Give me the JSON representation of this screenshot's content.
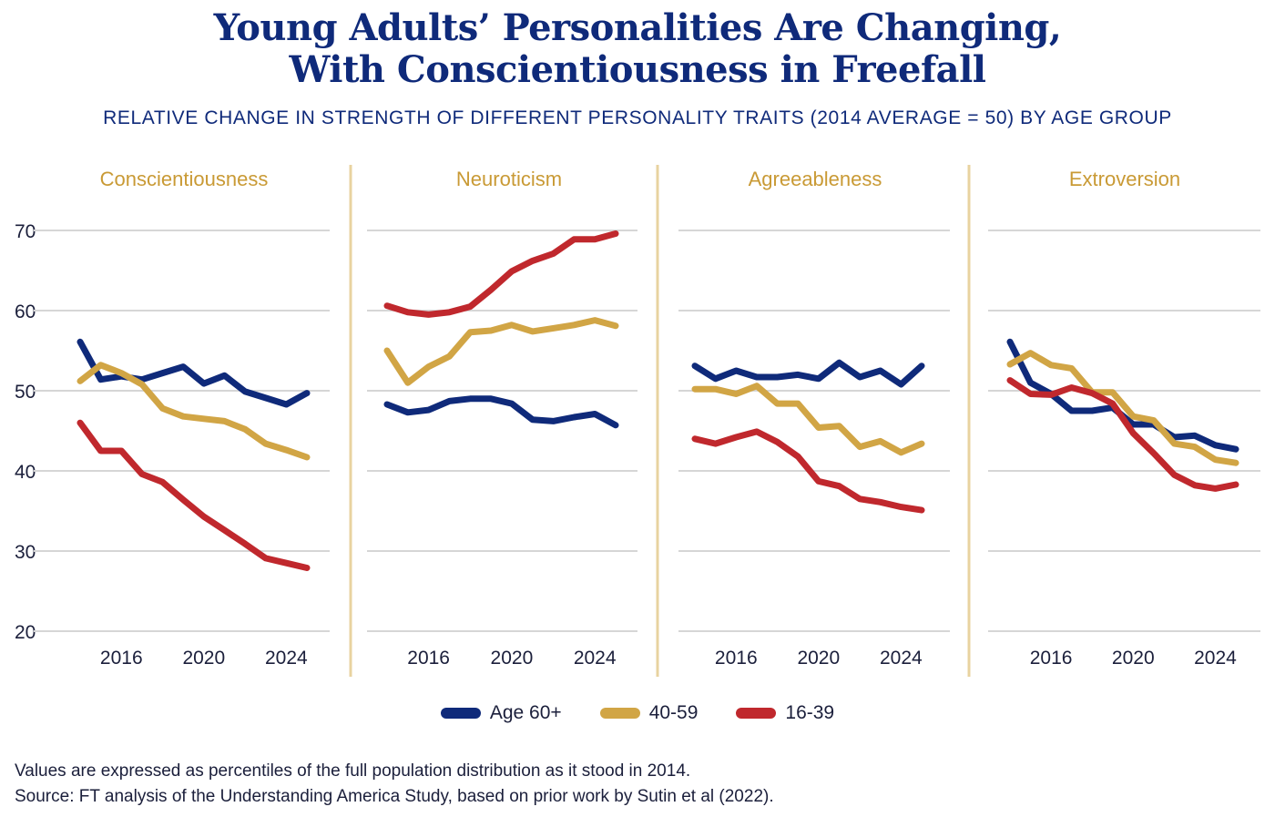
{
  "title_line1": "Young Adults’ Personalities Are Changing,",
  "title_line2": "With Conscientiousness in Freefall",
  "subtitle": "RELATIVE CHANGE IN STRENGTH OF DIFFERENT PERSONALITY TRAITS (2014 AVERAGE = 50) BY AGE GROUP",
  "footer_note": "Values are expressed as percentiles of the full population distribution as it stood in 2014.",
  "footer_source": "Source: FT analysis of the Understanding America Study, based on prior work by Sutin et al (2022).",
  "colors": {
    "age60": "#0f2a7a",
    "age40": "#d1a545",
    "age16": "#c0282d",
    "panel_title": "#c99a35",
    "divider": "#e8d3a0",
    "grid": "#d6d6d6",
    "text": "#1b1f3b"
  },
  "chart_data": {
    "type": "line",
    "title": "Young Adults’ Personalities Are Changing, With Conscientiousness in Freefall",
    "subtitle": "RELATIVE CHANGE IN STRENGTH OF DIFFERENT PERSONALITY TRAITS (2014 AVERAGE = 50) BY AGE GROUP",
    "x": [
      2014,
      2015,
      2016,
      2017,
      2018,
      2019,
      2020,
      2021,
      2022,
      2023,
      2024,
      2025
    ],
    "x_ticks": [
      2016,
      2020,
      2024
    ],
    "x_tick_labels": [
      "2016",
      "2020",
      "2024"
    ],
    "ylim": [
      20,
      70
    ],
    "y_ticks": [
      20,
      30,
      40,
      50,
      60,
      70
    ],
    "y_tick_labels": [
      "20",
      "30",
      "40",
      "50",
      "60",
      "70"
    ],
    "grid": true,
    "legend_position": "bottom-center",
    "legend": [
      "Age 60+",
      "40-59",
      "16-39"
    ],
    "panels": [
      {
        "title": "Conscientiousness",
        "series": [
          {
            "name": "Age 60+",
            "key": "age60",
            "values": [
              56.1,
              51.4,
              51.8,
              51.4,
              52.2,
              53.0,
              50.9,
              51.9,
              49.9,
              49.1,
              48.3,
              49.7
            ]
          },
          {
            "name": "40-59",
            "key": "age40",
            "values": [
              51.2,
              53.2,
              52.2,
              50.8,
              47.8,
              46.8,
              46.5,
              46.2,
              45.2,
              43.4,
              42.6,
              41.7
            ]
          },
          {
            "name": "16-39",
            "key": "age16",
            "values": [
              46.0,
              42.5,
              42.5,
              39.6,
              38.6,
              36.4,
              34.3,
              32.6,
              30.9,
              29.1,
              28.5,
              27.9
            ]
          }
        ]
      },
      {
        "title": "Neuroticism",
        "series": [
          {
            "name": "Age 60+",
            "key": "age60",
            "values": [
              48.3,
              47.3,
              47.6,
              48.7,
              49.0,
              49.0,
              48.4,
              46.4,
              46.2,
              46.7,
              47.1,
              45.7
            ]
          },
          {
            "name": "40-59",
            "key": "age40",
            "values": [
              55.0,
              51.0,
              53.0,
              54.3,
              57.3,
              57.5,
              58.2,
              57.4,
              57.8,
              58.2,
              58.8,
              58.1
            ]
          },
          {
            "name": "16-39",
            "key": "age16",
            "values": [
              60.6,
              59.8,
              59.5,
              59.8,
              60.5,
              62.6,
              64.9,
              66.2,
              67.1,
              68.9,
              68.9,
              69.6
            ]
          }
        ]
      },
      {
        "title": "Agreeableness",
        "series": [
          {
            "name": "Age 60+",
            "key": "age60",
            "values": [
              53.1,
              51.5,
              52.5,
              51.7,
              51.7,
              52.0,
              51.5,
              53.5,
              51.7,
              52.5,
              50.8,
              53.1
            ]
          },
          {
            "name": "40-59",
            "key": "age40",
            "values": [
              50.2,
              50.2,
              49.6,
              50.6,
              48.4,
              48.4,
              45.4,
              45.6,
              43.0,
              43.7,
              42.3,
              43.4
            ]
          },
          {
            "name": "16-39",
            "key": "age16",
            "values": [
              44.0,
              43.4,
              44.2,
              44.9,
              43.6,
              41.8,
              38.7,
              38.1,
              36.5,
              36.1,
              35.5,
              35.1
            ]
          }
        ]
      },
      {
        "title": "Extroversion",
        "series": [
          {
            "name": "Age 60+",
            "key": "age60",
            "values": [
              56.1,
              51.0,
              49.6,
              47.5,
              47.5,
              47.9,
              45.8,
              45.8,
              44.2,
              44.4,
              43.2,
              42.7
            ]
          },
          {
            "name": "40-59",
            "key": "age40",
            "values": [
              53.3,
              54.7,
              53.2,
              52.8,
              49.8,
              49.8,
              46.8,
              46.3,
              43.4,
              43.0,
              41.4,
              41.0
            ]
          },
          {
            "name": "16-39",
            "key": "age16",
            "values": [
              51.3,
              49.6,
              49.5,
              50.4,
              49.7,
              48.4,
              44.7,
              42.2,
              39.5,
              38.2,
              37.8,
              38.3
            ]
          }
        ]
      }
    ]
  }
}
